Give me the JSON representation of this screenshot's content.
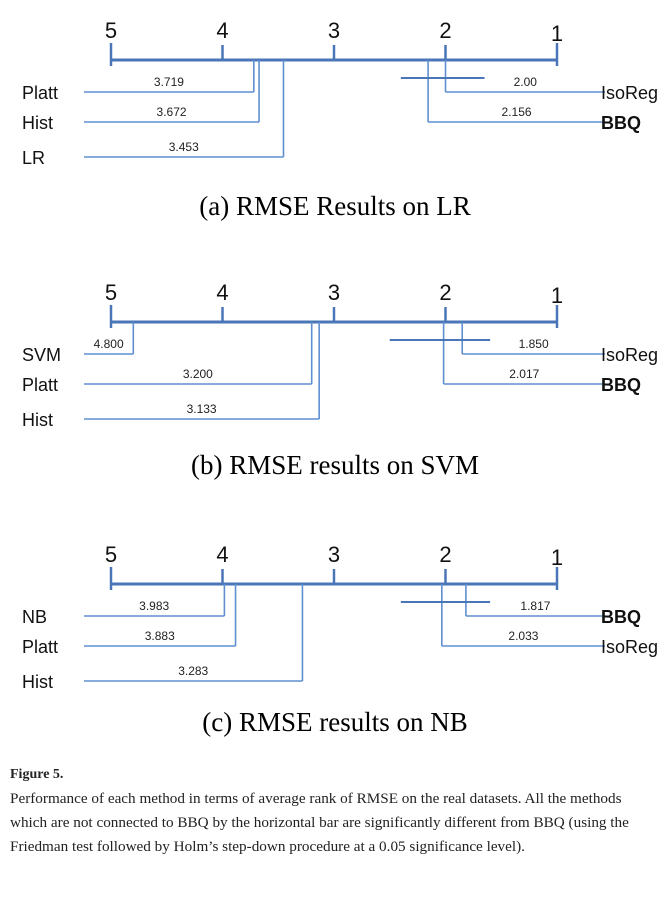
{
  "figure": {
    "label": "Figure 5.",
    "caption": "Performance of each method in terms of average rank of RMSE on the real datasets. All the methods which are not connected to BBQ by the horizontal bar are significantly different from BBQ (using the Friedman test followed by Holm’s step-down procedure at a 0.05 significance level)."
  },
  "colors": {
    "axis": "#4a76b8",
    "line": "#5f8fd1",
    "text": "#111111"
  },
  "chart_data": [
    {
      "type": "critical-difference",
      "title": "(a) RMSE Results on LR",
      "axis": {
        "ticks": [
          "5",
          "4",
          "3",
          "2",
          "1"
        ],
        "range": [
          5,
          1
        ]
      },
      "methods": [
        {
          "name": "Platt",
          "rank": 3.719,
          "rank_label": "3.719",
          "side": "left",
          "bold": false
        },
        {
          "name": "Hist",
          "rank": 3.672,
          "rank_label": "3.672",
          "side": "left",
          "bold": false
        },
        {
          "name": "LR",
          "rank": 3.453,
          "rank_label": "3.453",
          "side": "left",
          "bold": false
        },
        {
          "name": "IsoReg",
          "rank": 2.0,
          "rank_label": "2.00",
          "side": "right",
          "bold": false
        },
        {
          "name": "BBQ",
          "rank": 2.156,
          "rank_label": "2.156",
          "side": "right",
          "bold": true
        }
      ],
      "cd_bar": {
        "from_rank": 2.4,
        "to_rank": 1.65
      }
    },
    {
      "type": "critical-difference",
      "title": "(b) RMSE results on SVM",
      "axis": {
        "ticks": [
          "5",
          "4",
          "3",
          "2",
          "1"
        ],
        "range": [
          5,
          1
        ]
      },
      "methods": [
        {
          "name": "SVM",
          "rank": 4.8,
          "rank_label": "4.800",
          "side": "left",
          "bold": false
        },
        {
          "name": "Platt",
          "rank": 3.2,
          "rank_label": "3.200",
          "side": "left",
          "bold": false
        },
        {
          "name": "Hist",
          "rank": 3.133,
          "rank_label": "3.133",
          "side": "left",
          "bold": false
        },
        {
          "name": "IsoReg",
          "rank": 1.85,
          "rank_label": "1.850",
          "side": "right",
          "bold": false
        },
        {
          "name": "BBQ",
          "rank": 2.017,
          "rank_label": "2.017",
          "side": "right",
          "bold": true
        }
      ],
      "cd_bar": {
        "from_rank": 2.5,
        "to_rank": 1.6
      }
    },
    {
      "type": "critical-difference",
      "title": "(c) RMSE results on NB",
      "axis": {
        "ticks": [
          "5",
          "4",
          "3",
          "2",
          "1"
        ],
        "range": [
          5,
          1
        ]
      },
      "methods": [
        {
          "name": "NB",
          "rank": 3.983,
          "rank_label": "3.983",
          "side": "left",
          "bold": false
        },
        {
          "name": "Platt",
          "rank": 3.883,
          "rank_label": "3.883",
          "side": "left",
          "bold": false
        },
        {
          "name": "Hist",
          "rank": 3.283,
          "rank_label": "3.283",
          "side": "left",
          "bold": false
        },
        {
          "name": "BBQ",
          "rank": 1.817,
          "rank_label": "1.817",
          "side": "right",
          "bold": true
        },
        {
          "name": "IsoReg",
          "rank": 2.033,
          "rank_label": "2.033",
          "side": "right",
          "bold": false
        }
      ],
      "cd_bar": {
        "from_rank": 2.4,
        "to_rank": 1.6
      }
    }
  ]
}
